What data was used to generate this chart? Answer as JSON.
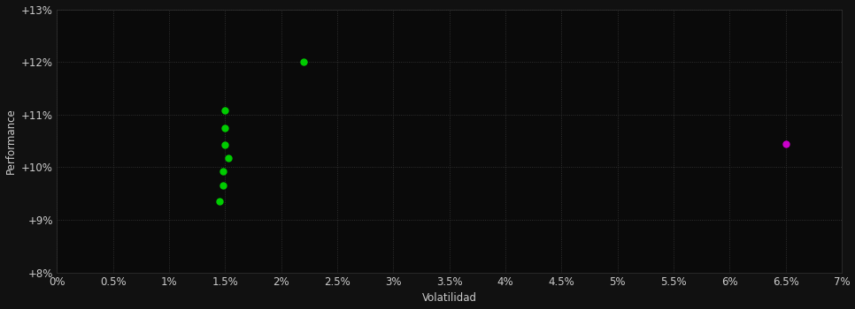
{
  "background_color": "#111111",
  "plot_bg_color": "#0a0a0a",
  "grid_color": "#3a3a3a",
  "text_color": "#cccccc",
  "xlabel": "Volatilidad",
  "ylabel": "Performance",
  "xlim": [
    0.0,
    0.07
  ],
  "ylim": [
    0.08,
    0.13
  ],
  "xticks": [
    0.0,
    0.005,
    0.01,
    0.015,
    0.02,
    0.025,
    0.03,
    0.035,
    0.04,
    0.045,
    0.05,
    0.055,
    0.06,
    0.065,
    0.07
  ],
  "yticks": [
    0.08,
    0.09,
    0.1,
    0.11,
    0.12,
    0.13
  ],
  "xtick_labels": [
    "0%",
    "0.5%",
    "1%",
    "1.5%",
    "2%",
    "2.5%",
    "3%",
    "3.5%",
    "4%",
    "4.5%",
    "5%",
    "5.5%",
    "6%",
    "6.5%",
    "7%"
  ],
  "ytick_labels": [
    "+8%",
    "+9%",
    "+10%",
    "+11%",
    "+12%",
    "+13%"
  ],
  "green_points": [
    [
      0.022,
      0.12
    ],
    [
      0.015,
      0.1108
    ],
    [
      0.015,
      0.1075
    ],
    [
      0.015,
      0.1042
    ],
    [
      0.0153,
      0.1018
    ],
    [
      0.0148,
      0.0993
    ],
    [
      0.0148,
      0.0965
    ],
    [
      0.0145,
      0.0935
    ]
  ],
  "magenta_points": [
    [
      0.065,
      0.1045
    ]
  ],
  "green_color": "#00cc00",
  "magenta_color": "#cc00cc",
  "marker_size": 5,
  "font_size": 8.5
}
